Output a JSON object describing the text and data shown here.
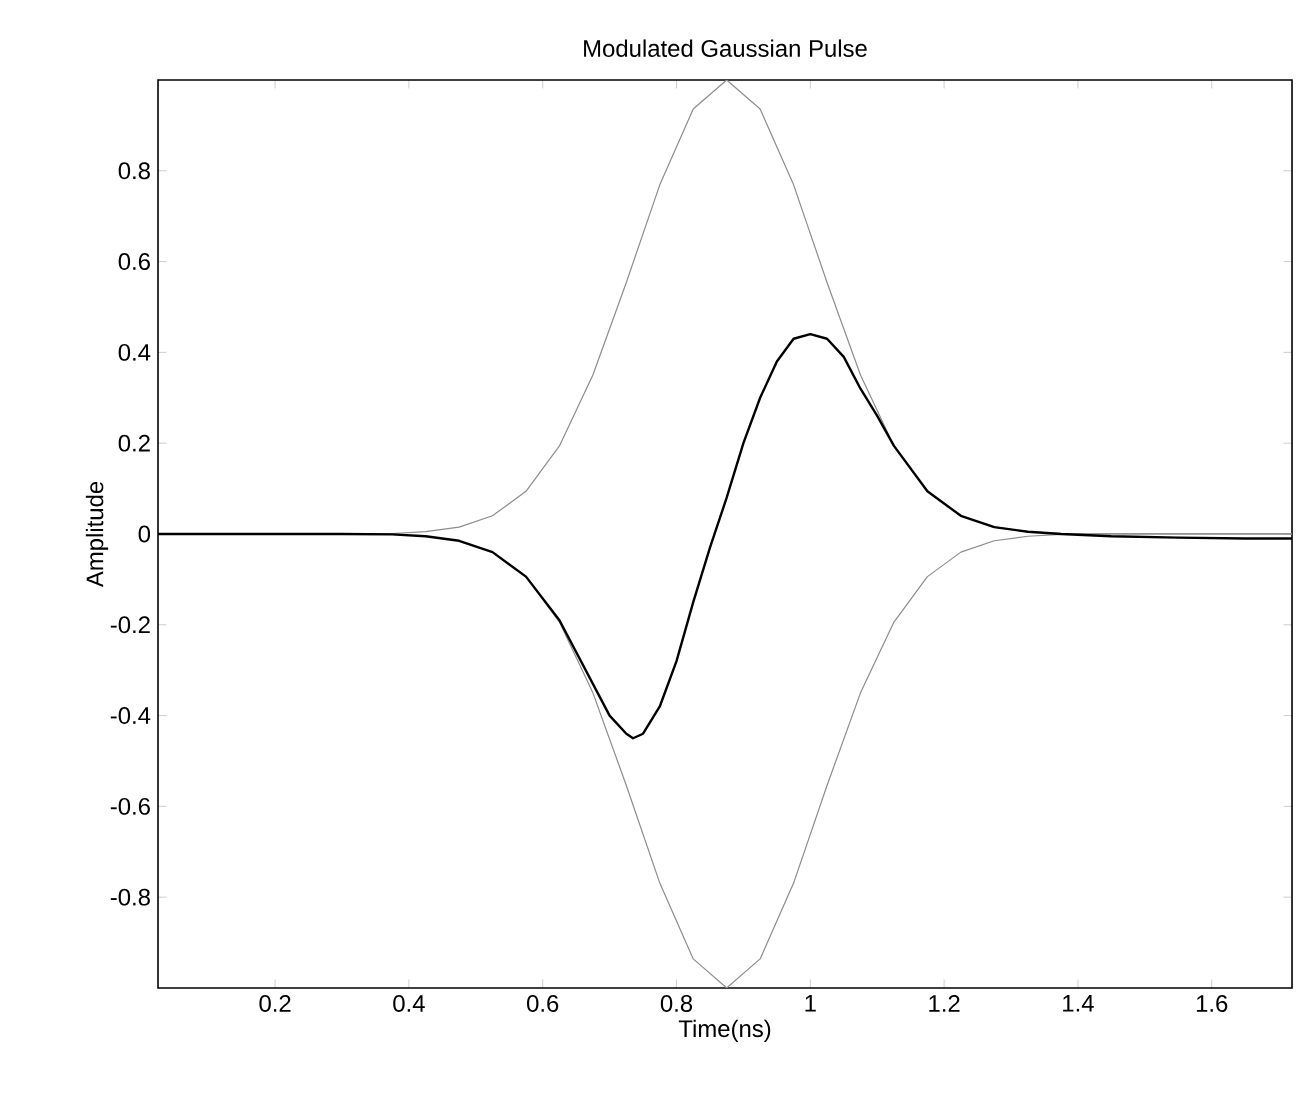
{
  "chart_data": {
    "type": "line",
    "title": "Modulated Gaussian Pulse",
    "xlabel": "Time(ns)",
    "ylabel": "Amplitude",
    "xlim": [
      0.025,
      1.72
    ],
    "ylim": [
      -1,
      1
    ],
    "xticks": [
      0.2,
      0.4,
      0.6,
      0.8,
      1,
      1.2,
      1.4,
      1.6
    ],
    "yticks": [
      -0.8,
      -0.6,
      -0.4,
      -0.2,
      0,
      0.2,
      0.4,
      0.6,
      0.8
    ],
    "grid": false,
    "marker": "none",
    "series": [
      {
        "color": "#8c8c8c",
        "x": [
          0.025,
          0.1,
          0.2,
          0.3,
          0.375,
          0.425,
          0.475,
          0.525,
          0.575,
          0.625,
          0.675,
          0.725,
          0.775,
          0.825,
          0.875,
          0.925,
          0.975,
          1.025,
          1.075,
          1.125,
          1.175,
          1.225,
          1.275,
          1.325,
          1.375,
          1.45,
          1.55,
          1.65,
          1.72
        ],
        "values": [
          0,
          0,
          0,
          0,
          0.001,
          0.005,
          0.015,
          0.04,
          0.094,
          0.194,
          0.35,
          0.554,
          0.769,
          0.936,
          1,
          0.936,
          0.769,
          0.554,
          0.35,
          0.194,
          0.094,
          0.04,
          0.015,
          0.005,
          0.001,
          0,
          0,
          0,
          0
        ]
      },
      {
        "color": "#8c8c8c",
        "x": [
          0.025,
          0.1,
          0.2,
          0.3,
          0.375,
          0.425,
          0.475,
          0.525,
          0.575,
          0.625,
          0.675,
          0.725,
          0.775,
          0.825,
          0.875,
          0.925,
          0.975,
          1.025,
          1.075,
          1.125,
          1.175,
          1.225,
          1.275,
          1.325,
          1.375,
          1.45,
          1.55,
          1.65,
          1.72
        ],
        "values": [
          0,
          0,
          0,
          0,
          -0.001,
          -0.005,
          -0.015,
          -0.04,
          -0.094,
          -0.194,
          -0.35,
          -0.554,
          -0.769,
          -0.936,
          -1,
          -0.936,
          -0.769,
          -0.554,
          -0.35,
          -0.194,
          -0.094,
          -0.04,
          -0.015,
          -0.005,
          -0.001,
          0,
          0,
          0,
          0
        ]
      },
      {
        "color": "#000000",
        "x": [
          0.025,
          0.1,
          0.2,
          0.3,
          0.375,
          0.425,
          0.475,
          0.525,
          0.575,
          0.625,
          0.65,
          0.675,
          0.7,
          0.725,
          0.735,
          0.75,
          0.775,
          0.8,
          0.825,
          0.85,
          0.875,
          0.9,
          0.925,
          0.95,
          0.975,
          1.0,
          1.025,
          1.05,
          1.075,
          1.1,
          1.125,
          1.175,
          1.225,
          1.275,
          1.325,
          1.375,
          1.45,
          1.55,
          1.65,
          1.72
        ],
        "values": [
          0,
          0,
          0,
          0,
          -0.001,
          -0.005,
          -0.015,
          -0.04,
          -0.094,
          -0.19,
          -0.26,
          -0.33,
          -0.4,
          -0.44,
          -0.45,
          -0.44,
          -0.38,
          -0.28,
          -0.15,
          -0.03,
          0.08,
          0.2,
          0.3,
          0.38,
          0.43,
          0.44,
          0.43,
          0.39,
          0.32,
          0.26,
          0.194,
          0.094,
          0.04,
          0.015,
          0.005,
          0,
          -0.005,
          -0.008,
          -0.01,
          -0.01
        ]
      }
    ]
  }
}
